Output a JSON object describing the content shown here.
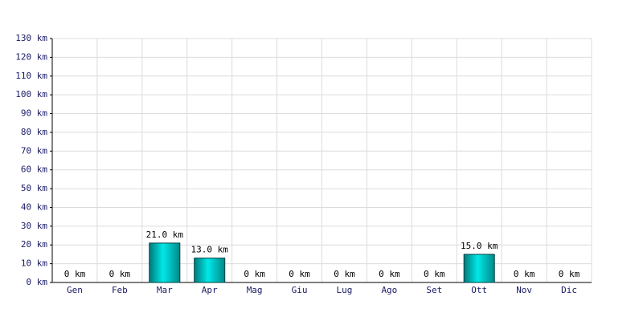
{
  "chart_data": {
    "type": "bar",
    "categories": [
      "Gen",
      "Feb",
      "Mar",
      "Apr",
      "Mag",
      "Giu",
      "Lug",
      "Ago",
      "Set",
      "Ott",
      "Nov",
      "Dic"
    ],
    "values": [
      0,
      0,
      21,
      13,
      0,
      0,
      0,
      0,
      0,
      15,
      0,
      0
    ],
    "value_labels": [
      "0 km",
      "0 km",
      "21.0 km",
      "13.0 km",
      "0 km",
      "0 km",
      "0 km",
      "0 km",
      "0 km",
      "15.0 km",
      "0 km",
      "0 km"
    ],
    "color": "#00c8c8",
    "ylim": [
      0,
      130
    ],
    "yticks": [
      {
        "value": 0,
        "label": "0 km"
      },
      {
        "value": 10,
        "label": "10 km"
      },
      {
        "value": 20,
        "label": "20 km"
      },
      {
        "value": 30,
        "label": "30 km"
      },
      {
        "value": 40,
        "label": "40 km"
      },
      {
        "value": 50,
        "label": "50 km"
      },
      {
        "value": 60,
        "label": "60 km"
      },
      {
        "value": 70,
        "label": "70 km"
      },
      {
        "value": 80,
        "label": "80 km"
      },
      {
        "value": 90,
        "label": "90 km"
      },
      {
        "value": 100,
        "label": "100 km"
      },
      {
        "value": 110,
        "label": "110 km"
      },
      {
        "value": 120,
        "label": "120 km"
      },
      {
        "value": 130,
        "label": "130 km"
      }
    ],
    "grid": true
  }
}
